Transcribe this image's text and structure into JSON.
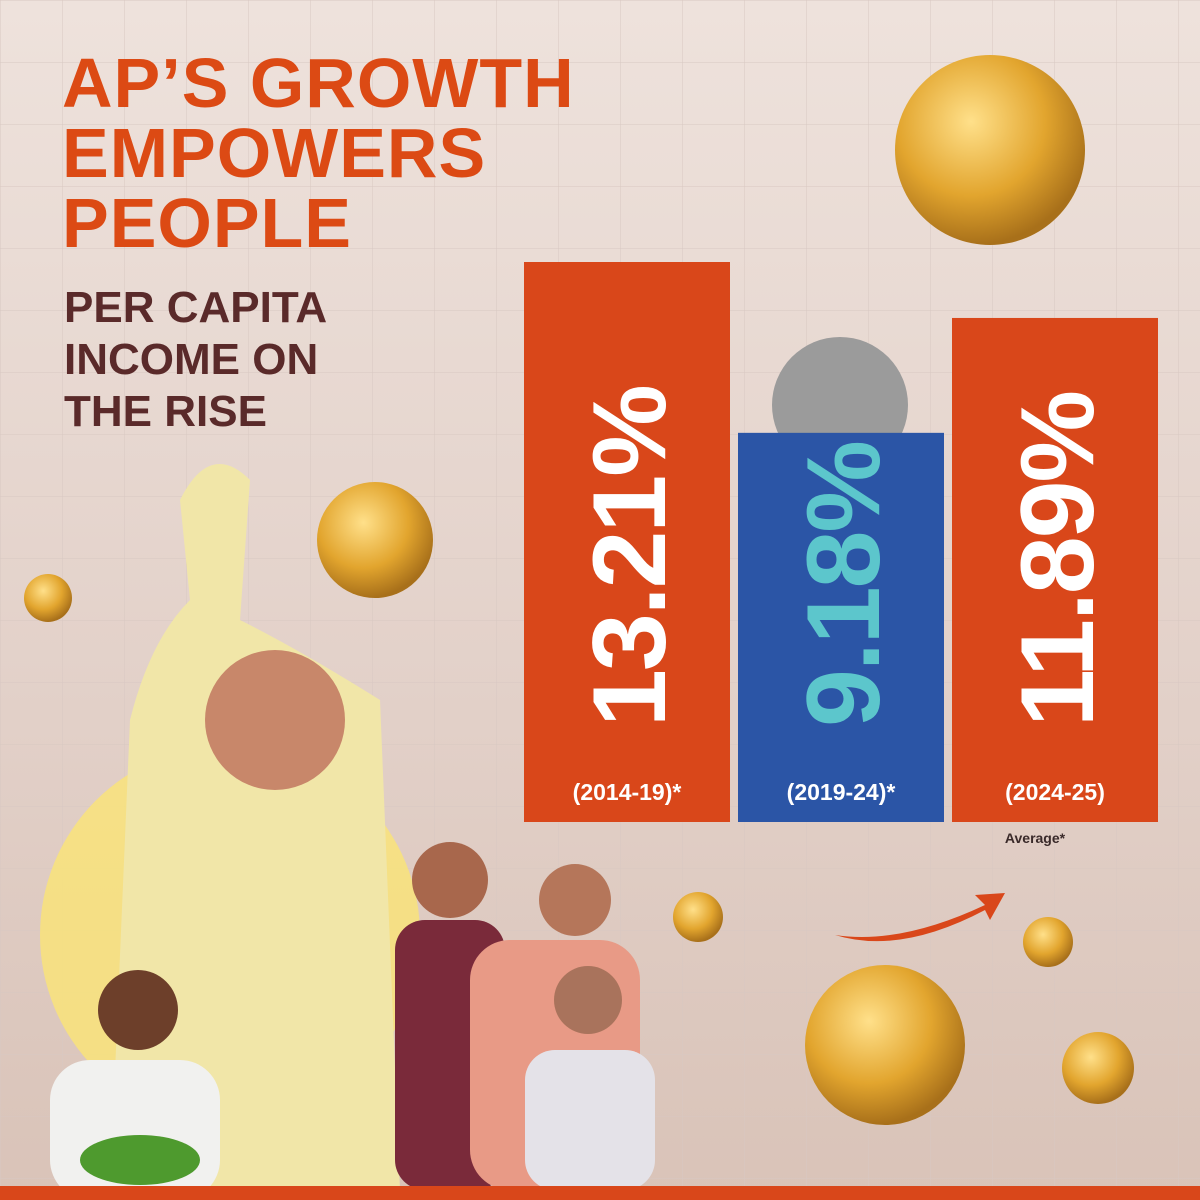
{
  "chart_data": {
    "type": "bar",
    "title": "AP’S GROWTH EMPOWERS PEOPLE",
    "subtitle": "PER CAPITA INCOME ON THE RISE",
    "categories": [
      "(2014-19)*",
      "(2019-24)*",
      "(2024-25)"
    ],
    "values": [
      13.21,
      9.18,
      11.89
    ],
    "value_labels": [
      "13.21%",
      "9.18%",
      "11.89%"
    ],
    "colors": [
      "#d9471a",
      "#2b55a6",
      "#d9471a"
    ],
    "label_colors": [
      "#ffffff",
      "#5cc6cc",
      "#ffffff"
    ],
    "annotation": "Average*"
  }
}
